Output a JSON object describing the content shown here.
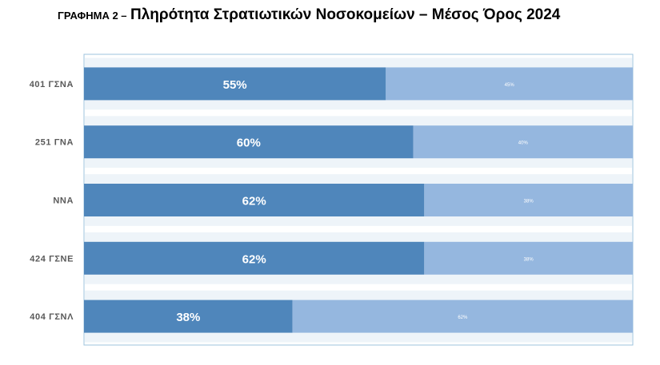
{
  "title": {
    "prefix": "ΓΡΑΦΗΜΑ 2 –",
    "main": "Πληρότητα Στρατιωτικών Νοσοκομείων – Μέσος Όρος 2024"
  },
  "chart_data": {
    "type": "bar",
    "orientation": "horizontal",
    "stacked": true,
    "percent": true,
    "categories": [
      "401 ΓΣΝΑ",
      "251 ΓΝΑ",
      "ΝΝΑ",
      "424 ΓΣΝΕ",
      "404 ΓΣΝΛ"
    ],
    "series": [
      {
        "values": [
          55,
          60,
          62,
          62,
          38
        ],
        "labels": [
          "55%",
          "60%",
          "62%",
          "62%",
          "38%"
        ]
      },
      {
        "values": [
          45,
          40,
          38,
          38,
          62
        ],
        "labels": [
          "45%",
          "40%",
          "38%",
          "38%",
          "62%"
        ]
      }
    ],
    "xlim": [
      0,
      100
    ],
    "colors": {
      "series1": "#4f86bb",
      "series2": "#95b7df",
      "frame": "#9dc3dd",
      "band": "#eef4f9",
      "category_text": "#595959"
    },
    "grid": false,
    "legend": "none"
  }
}
